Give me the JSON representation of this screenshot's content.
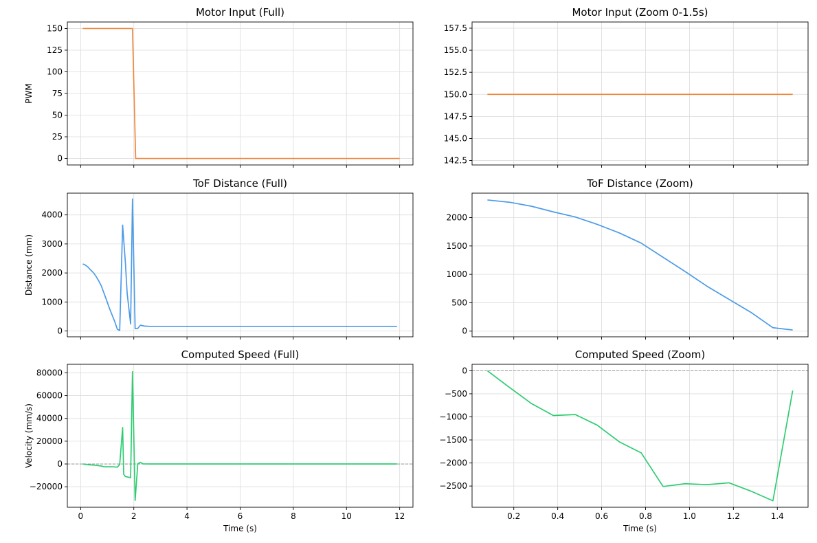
{
  "chart_data": [
    {
      "type": "line",
      "title": "Motor Input (Full)",
      "xlabel": "",
      "ylabel": "PWM",
      "xlim": [
        -0.5,
        12.5
      ],
      "ylim": [
        -7.5,
        157.5
      ],
      "xticks": [
        0,
        2,
        4,
        6,
        8,
        10,
        12
      ],
      "xtick_labels_visible": false,
      "yticks": [
        0,
        25,
        50,
        75,
        100,
        125,
        150
      ],
      "ytick_labels": [
        "0",
        "25",
        "50",
        "75",
        "100",
        "125",
        "150"
      ],
      "grid": true,
      "zero_line": false,
      "color": "#f0883e",
      "series": [
        {
          "name": "PWM",
          "x": [
            0.08,
            1.95,
            2.07,
            12.0
          ],
          "y": [
            150,
            150,
            0,
            0
          ]
        }
      ]
    },
    {
      "type": "line",
      "title": "Motor Input (Zoom 0-1.5s)",
      "xlabel": "",
      "ylabel": "",
      "xlim": [
        0.01,
        1.54
      ],
      "ylim": [
        142.0,
        158.2
      ],
      "xticks": [
        0.2,
        0.4,
        0.6,
        0.8,
        1.0,
        1.2,
        1.4
      ],
      "xtick_labels_visible": false,
      "yticks": [
        142.5,
        145.0,
        147.5,
        150.0,
        152.5,
        155.0,
        157.5
      ],
      "ytick_labels": [
        "142.5",
        "145.0",
        "147.5",
        "150.0",
        "152.5",
        "155.0",
        "157.5"
      ],
      "grid": true,
      "zero_line": false,
      "color": "#f0883e",
      "series": [
        {
          "name": "PWM",
          "x": [
            0.08,
            1.47
          ],
          "y": [
            150,
            150
          ]
        }
      ]
    },
    {
      "type": "line",
      "title": "ToF Distance (Full)",
      "xlabel": "",
      "ylabel": "Distance (mm)",
      "xlim": [
        -0.5,
        12.5
      ],
      "ylim": [
        -200,
        4750
      ],
      "xticks": [
        0,
        2,
        4,
        6,
        8,
        10,
        12
      ],
      "xtick_labels_visible": false,
      "yticks": [
        0,
        1000,
        2000,
        3000,
        4000
      ],
      "ytick_labels": [
        "0",
        "1000",
        "2000",
        "3000",
        "4000"
      ],
      "grid": true,
      "zero_line": false,
      "color": "#4c9be8",
      "series": [
        {
          "name": "Distance",
          "x": [
            0.08,
            0.18,
            0.28,
            0.38,
            0.48,
            0.58,
            0.68,
            0.78,
            0.88,
            0.98,
            1.08,
            1.18,
            1.28,
            1.38,
            1.47,
            1.58,
            1.68,
            1.75,
            1.88,
            1.95,
            2.05,
            2.15,
            2.25,
            2.4,
            2.6,
            3,
            4,
            5,
            6,
            7,
            8,
            9,
            10,
            11,
            11.9
          ],
          "y": [
            2310,
            2270,
            2200,
            2100,
            2010,
            1880,
            1730,
            1550,
            1300,
            1050,
            790,
            560,
            330,
            60,
            20,
            3650,
            2400,
            1300,
            240,
            4550,
            80,
            90,
            200,
            170,
            160,
            160,
            160,
            160,
            160,
            160,
            160,
            160,
            160,
            160,
            160
          ]
        }
      ]
    },
    {
      "type": "line",
      "title": "ToF Distance (Zoom)",
      "xlabel": "",
      "ylabel": "",
      "xlim": [
        0.01,
        1.54
      ],
      "ylim": [
        -100,
        2430
      ],
      "xticks": [
        0.2,
        0.4,
        0.6,
        0.8,
        1.0,
        1.2,
        1.4
      ],
      "xtick_labels_visible": false,
      "yticks": [
        0,
        500,
        1000,
        1500,
        2000
      ],
      "ytick_labels": [
        "0",
        "500",
        "1000",
        "1500",
        "2000"
      ],
      "grid": true,
      "zero_line": false,
      "color": "#4c9be8",
      "series": [
        {
          "name": "Distance",
          "x": [
            0.08,
            0.18,
            0.28,
            0.38,
            0.48,
            0.58,
            0.68,
            0.78,
            0.88,
            0.98,
            1.08,
            1.18,
            1.28,
            1.38,
            1.47
          ],
          "y": [
            2310,
            2270,
            2200,
            2100,
            2010,
            1880,
            1730,
            1550,
            1300,
            1050,
            790,
            560,
            330,
            60,
            20
          ]
        }
      ]
    },
    {
      "type": "line",
      "title": "Computed Speed (Full)",
      "xlabel": "Time (s)",
      "ylabel": "Velocity (mm/s)",
      "xlim": [
        -0.5,
        12.5
      ],
      "ylim": [
        -38000,
        87500
      ],
      "xticks": [
        0,
        2,
        4,
        6,
        8,
        10,
        12
      ],
      "xtick_labels_visible": true,
      "xtick_labels": [
        "0",
        "2",
        "4",
        "6",
        "8",
        "10",
        "12"
      ],
      "yticks": [
        -20000,
        0,
        20000,
        40000,
        60000,
        80000
      ],
      "ytick_labels": [
        "−20000",
        "0",
        "20000",
        "40000",
        "60000",
        "80000"
      ],
      "grid": true,
      "zero_line": true,
      "color": "#2ecc71",
      "series": [
        {
          "name": "Velocity",
          "x": [
            0.08,
            0.28,
            0.48,
            0.78,
            0.88,
            1.18,
            1.38,
            1.47,
            1.58,
            1.62,
            1.68,
            1.88,
            1.95,
            2.05,
            2.15,
            2.25,
            2.35,
            2.6,
            4,
            6,
            8,
            10,
            11.9
          ],
          "y": [
            0,
            -700,
            -950,
            -1800,
            -2500,
            -2450,
            -2800,
            -400,
            32000,
            -9000,
            -11000,
            -12000,
            81000,
            -32000,
            200,
            1400,
            100,
            0,
            0,
            0,
            0,
            0,
            0
          ]
        }
      ]
    },
    {
      "type": "line",
      "title": "Computed Speed (Zoom)",
      "xlabel": "Time (s)",
      "ylabel": "",
      "xlim": [
        0.01,
        1.54
      ],
      "ylim": [
        -2960,
        140
      ],
      "xticks": [
        0.2,
        0.4,
        0.6,
        0.8,
        1.0,
        1.2,
        1.4
      ],
      "xtick_labels_visible": true,
      "xtick_labels": [
        "0.2",
        "0.4",
        "0.6",
        "0.8",
        "1.0",
        "1.2",
        "1.4"
      ],
      "yticks": [
        -2500,
        -2000,
        -1500,
        -1000,
        -500,
        0
      ],
      "ytick_labels": [
        "−2500",
        "−2000",
        "−1500",
        "−1000",
        "−500",
        "0"
      ],
      "grid": true,
      "zero_line": true,
      "color": "#2ecc71",
      "series": [
        {
          "name": "Velocity",
          "x": [
            0.08,
            0.18,
            0.28,
            0.38,
            0.48,
            0.58,
            0.68,
            0.78,
            0.88,
            0.98,
            1.08,
            1.18,
            1.28,
            1.38,
            1.47
          ],
          "y": [
            0,
            -360,
            -710,
            -970,
            -950,
            -1180,
            -1540,
            -1780,
            -2510,
            -2450,
            -2470,
            -2430,
            -2610,
            -2820,
            -430
          ]
        }
      ]
    }
  ]
}
